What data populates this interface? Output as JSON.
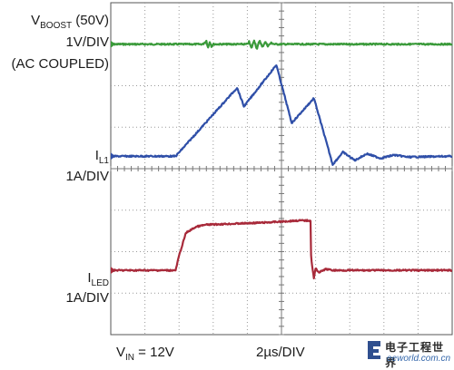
{
  "labels": {
    "vboost_main": "V",
    "vboost_sub": "BOOST",
    "vboost_rest": " (50V)",
    "vboost_scale": "1V/DIV",
    "vboost_coupling": "(AC COUPLED)",
    "il1_main": "I",
    "il1_sub": "L1",
    "il1_scale": "1A/DIV",
    "iled_main": "I",
    "iled_sub": "LED",
    "iled_scale": "1A/DIV",
    "vin_main": "V",
    "vin_sub": "IN",
    "vin_rest": " = 12V",
    "timebase": "2µs/DIV"
  },
  "watermark": {
    "chinese": "电子工程世界",
    "url": "eeworld.com.cn"
  },
  "chart_data": {
    "type": "line",
    "xlabel": "2µs/DIV",
    "x_divisions": 10,
    "y_divisions": 8,
    "grid": true,
    "series": [
      {
        "name": "VBOOST (50V)",
        "color": "#3a9a3a",
        "baseline_div": 1.0,
        "points": [
          [
            0,
            0
          ],
          [
            2.7,
            0
          ],
          [
            2.8,
            0.08
          ],
          [
            2.85,
            -0.08
          ],
          [
            2.9,
            0.06
          ],
          [
            2.95,
            -0.05
          ],
          [
            3.0,
            0
          ],
          [
            4.0,
            0
          ],
          [
            4.05,
            0.06
          ],
          [
            4.12,
            -0.1
          ],
          [
            4.2,
            0.1
          ],
          [
            4.28,
            -0.12
          ],
          [
            4.36,
            0.1
          ],
          [
            4.44,
            -0.08
          ],
          [
            4.52,
            0.06
          ],
          [
            4.6,
            -0.04
          ],
          [
            4.7,
            0.03
          ],
          [
            4.8,
            0
          ],
          [
            10,
            0
          ]
        ]
      },
      {
        "name": "IL1",
        "color": "#2f4fa8",
        "baseline_div": 3.7,
        "points": [
          [
            0,
            0
          ],
          [
            1.9,
            0
          ],
          [
            3.7,
            1.65
          ],
          [
            3.9,
            1.2
          ],
          [
            4.85,
            2.2
          ],
          [
            5.3,
            0.8
          ],
          [
            5.95,
            1.4
          ],
          [
            6.5,
            -0.2
          ],
          [
            6.8,
            0.1
          ],
          [
            7.15,
            -0.1
          ],
          [
            7.5,
            0.06
          ],
          [
            7.9,
            -0.05
          ],
          [
            8.3,
            0.03
          ],
          [
            8.7,
            -0.02
          ],
          [
            10,
            0
          ]
        ]
      },
      {
        "name": "ILED",
        "color": "#a82a3a",
        "baseline_div": 6.45,
        "points": [
          [
            0,
            0
          ],
          [
            1.9,
            0
          ],
          [
            2.0,
            0.35
          ],
          [
            2.2,
            0.9
          ],
          [
            2.5,
            1.05
          ],
          [
            2.8,
            1.1
          ],
          [
            3.5,
            1.12
          ],
          [
            4.5,
            1.15
          ],
          [
            5.5,
            1.2
          ],
          [
            5.85,
            1.2
          ],
          [
            5.86,
            0.4
          ],
          [
            5.9,
            0.1
          ],
          [
            5.95,
            -0.2
          ],
          [
            6.0,
            0.05
          ],
          [
            6.1,
            -0.05
          ],
          [
            6.3,
            0.03
          ],
          [
            6.5,
            0
          ],
          [
            10,
            0
          ]
        ]
      }
    ]
  }
}
